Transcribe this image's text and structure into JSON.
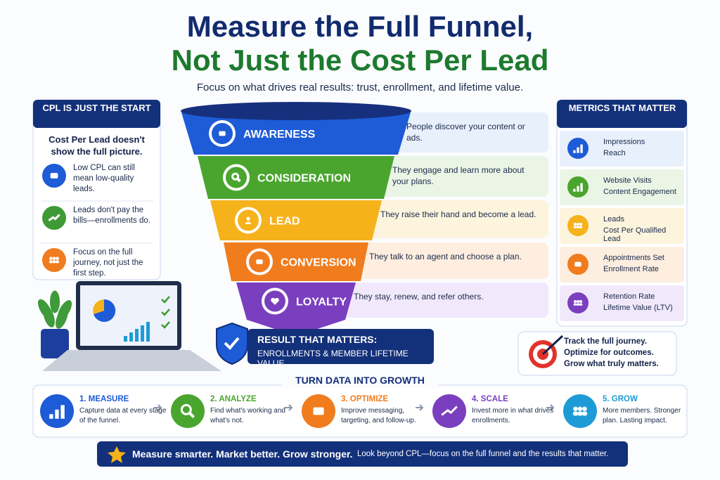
{
  "header": {
    "title_line1": "Measure the Full Funnel,",
    "title_line2": "Not Just the Cost Per Lead",
    "subtitle": "Focus on what drives real results: trust, enrollment, and lifetime value."
  },
  "left_panel": {
    "title": "CPL IS JUST THE START",
    "intro": "Cost Per Lead doesn't show the full picture.",
    "items": [
      "Low CPL can still mean low-quality leads.",
      "Leads don't pay the bills—enrollments do.",
      "Focus on the full journey, not just the first step."
    ]
  },
  "funnel": {
    "stages": [
      {
        "label": "AWARENESS",
        "description": "People discover your content or ads."
      },
      {
        "label": "CONSIDERATION",
        "description": "They engage and learn more about your plans."
      },
      {
        "label": "LEAD",
        "description": "They raise their hand and become a lead."
      },
      {
        "label": "CONVERSION",
        "description": "They talk to an agent and choose a plan."
      },
      {
        "label": "LOYALTY",
        "description": "They stay, renew, and refer others."
      }
    ]
  },
  "result": {
    "title": "RESULT THAT MATTERS:",
    "text": "ENROLLMENTS & MEMBER LIFETIME VALUE"
  },
  "metrics_panel": {
    "title": "METRICS THAT MATTER",
    "items": [
      [
        "Impressions",
        "Reach"
      ],
      [
        "Website Visits",
        "Content Engagement"
      ],
      [
        "Leads",
        "Cost Per Qualified Lead"
      ],
      [
        "Appointments Set",
        "Enrollment Rate"
      ],
      [
        "Retention Rate",
        "Lifetime Value (LTV)"
      ]
    ]
  },
  "callout": {
    "lines": [
      "Track the full journey.",
      "Optimize for outcomes.",
      "Grow what truly matters."
    ]
  },
  "growth": {
    "title": "TURN DATA INTO GROWTH",
    "steps": [
      {
        "title": "1. MEASURE",
        "text": "Capture data at every stage of the funnel."
      },
      {
        "title": "2. ANALYZE",
        "text": "Find what's working and what's not."
      },
      {
        "title": "3. OPTIMIZE",
        "text": "Improve messaging, targeting, and follow-up."
      },
      {
        "title": "4. SCALE",
        "text": "Invest more in what drives enrollments."
      },
      {
        "title": "5. GROW",
        "text": "More members. Stronger plan. Lasting impact."
      }
    ]
  },
  "footer": {
    "headline": "Measure smarter. Market better. Grow stronger.",
    "text": "Look beyond CPL—focus on the full funnel and the results that matter."
  }
}
